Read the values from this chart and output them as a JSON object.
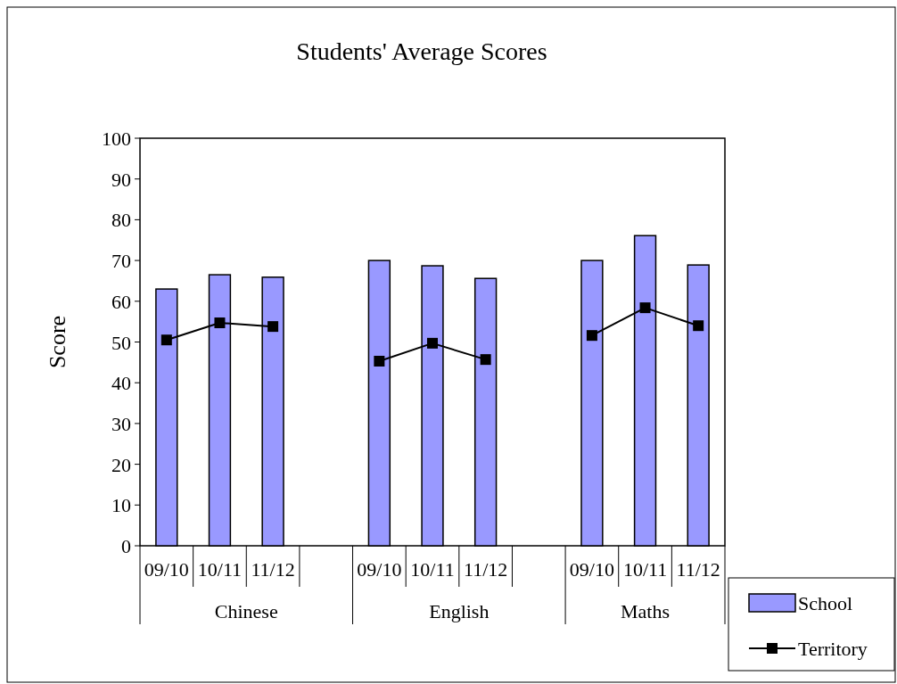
{
  "chart_data": {
    "type": "bar",
    "title": "Students' Average Scores",
    "ylabel": "Score",
    "categories": [
      "09/10",
      "10/11",
      "11/12",
      null,
      "09/10",
      "10/11",
      "11/12",
      null,
      "09/10",
      "10/11",
      "11/12"
    ],
    "annotations": [
      "Chinese",
      "English",
      "Maths"
    ],
    "series": [
      {
        "name": "School",
        "color": "#9999ff",
        "values": [
          63.0,
          66.5,
          65.9,
          null,
          70.0,
          68.7,
          65.6,
          null,
          70.0,
          76.1,
          68.9
        ]
      },
      {
        "name": "Territory",
        "type": "line",
        "color": "#000000",
        "marker": "square",
        "values": [
          50.5,
          54.7,
          53.8,
          null,
          45.3,
          49.7,
          45.7,
          null,
          51.6,
          58.4,
          54.0
        ]
      }
    ],
    "ylim": [
      0,
      100
    ],
    "yticks": [
      0,
      10,
      20,
      30,
      40,
      50,
      60,
      70,
      80,
      90,
      100
    ],
    "grid": false,
    "legend": "bottom right"
  }
}
